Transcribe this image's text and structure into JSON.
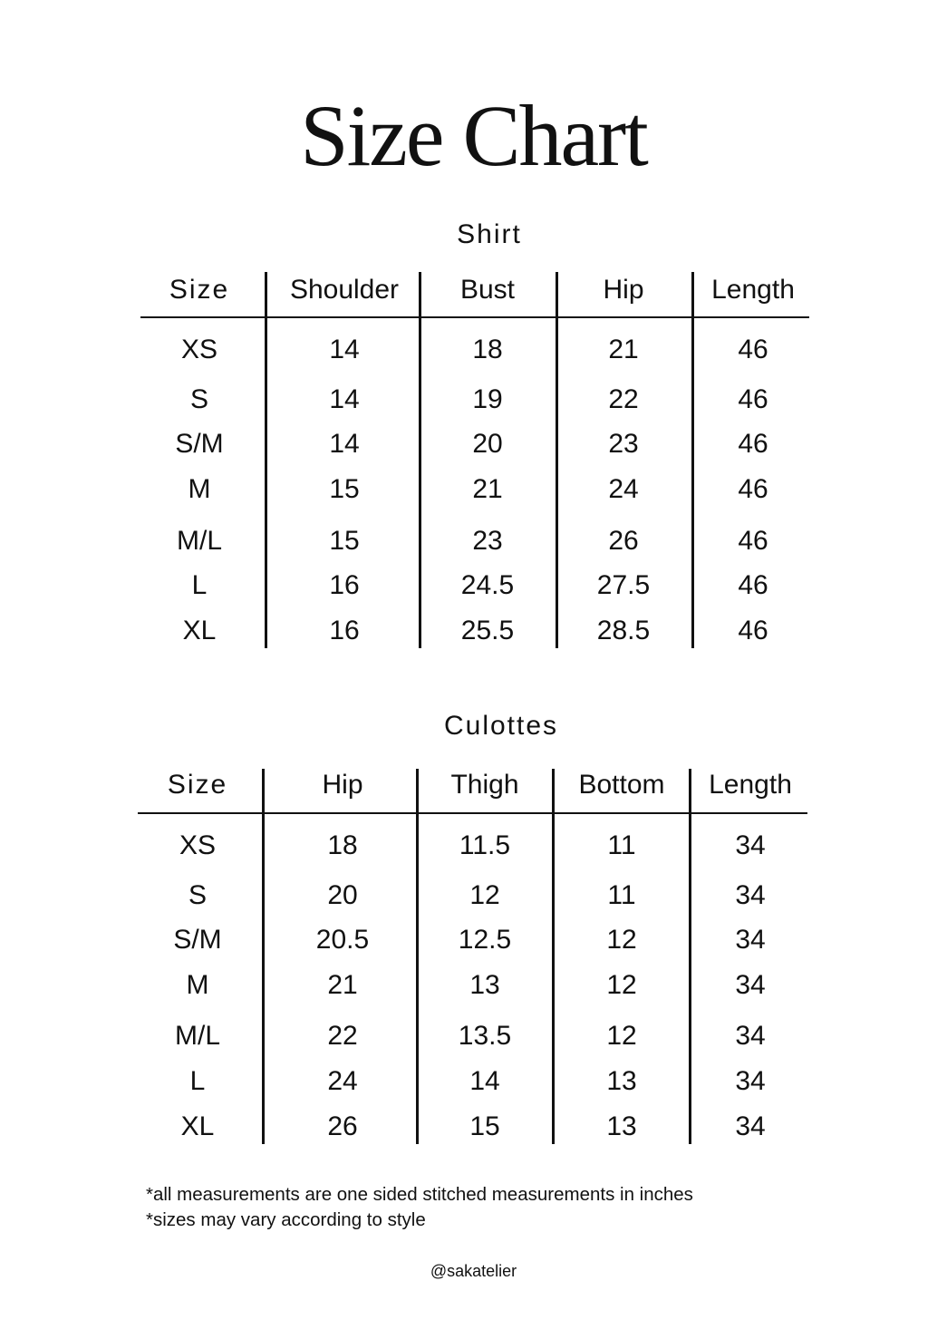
{
  "title": "Size Chart",
  "tables": [
    {
      "name": "Shirt",
      "headers": [
        "Size",
        "Shoulder",
        "Bust",
        "Hip",
        "Length"
      ],
      "rows": [
        [
          "XS",
          "14",
          "18",
          "21",
          "46"
        ],
        [
          "S",
          "14",
          "19",
          "22",
          "46"
        ],
        [
          "S/M",
          "14",
          "20",
          "23",
          "46"
        ],
        [
          "M",
          "15",
          "21",
          "24",
          "46"
        ],
        [
          "M/L",
          "15",
          "23",
          "26",
          "46"
        ],
        [
          "L",
          "16",
          "24.5",
          "27.5",
          "46"
        ],
        [
          "XL",
          "16",
          "25.5",
          "28.5",
          "46"
        ]
      ]
    },
    {
      "name": "Culottes",
      "headers": [
        "Size",
        "Hip",
        "Thigh",
        "Bottom",
        "Length"
      ],
      "rows": [
        [
          "XS",
          "18",
          "11.5",
          "11",
          "34"
        ],
        [
          "S",
          "20",
          "12",
          "11",
          "34"
        ],
        [
          "S/M",
          "20.5",
          "12.5",
          "12",
          "34"
        ],
        [
          "M",
          "21",
          "13",
          "12",
          "34"
        ],
        [
          "M/L",
          "22",
          "13.5",
          "12",
          "34"
        ],
        [
          "L",
          "24",
          "14",
          "13",
          "34"
        ],
        [
          "XL",
          "26",
          "15",
          "13",
          "34"
        ]
      ]
    }
  ],
  "notes": [
    "*all measurements are one sided stitched measurements in inches",
    "*sizes may vary according to style"
  ],
  "handle": "@sakatelier"
}
